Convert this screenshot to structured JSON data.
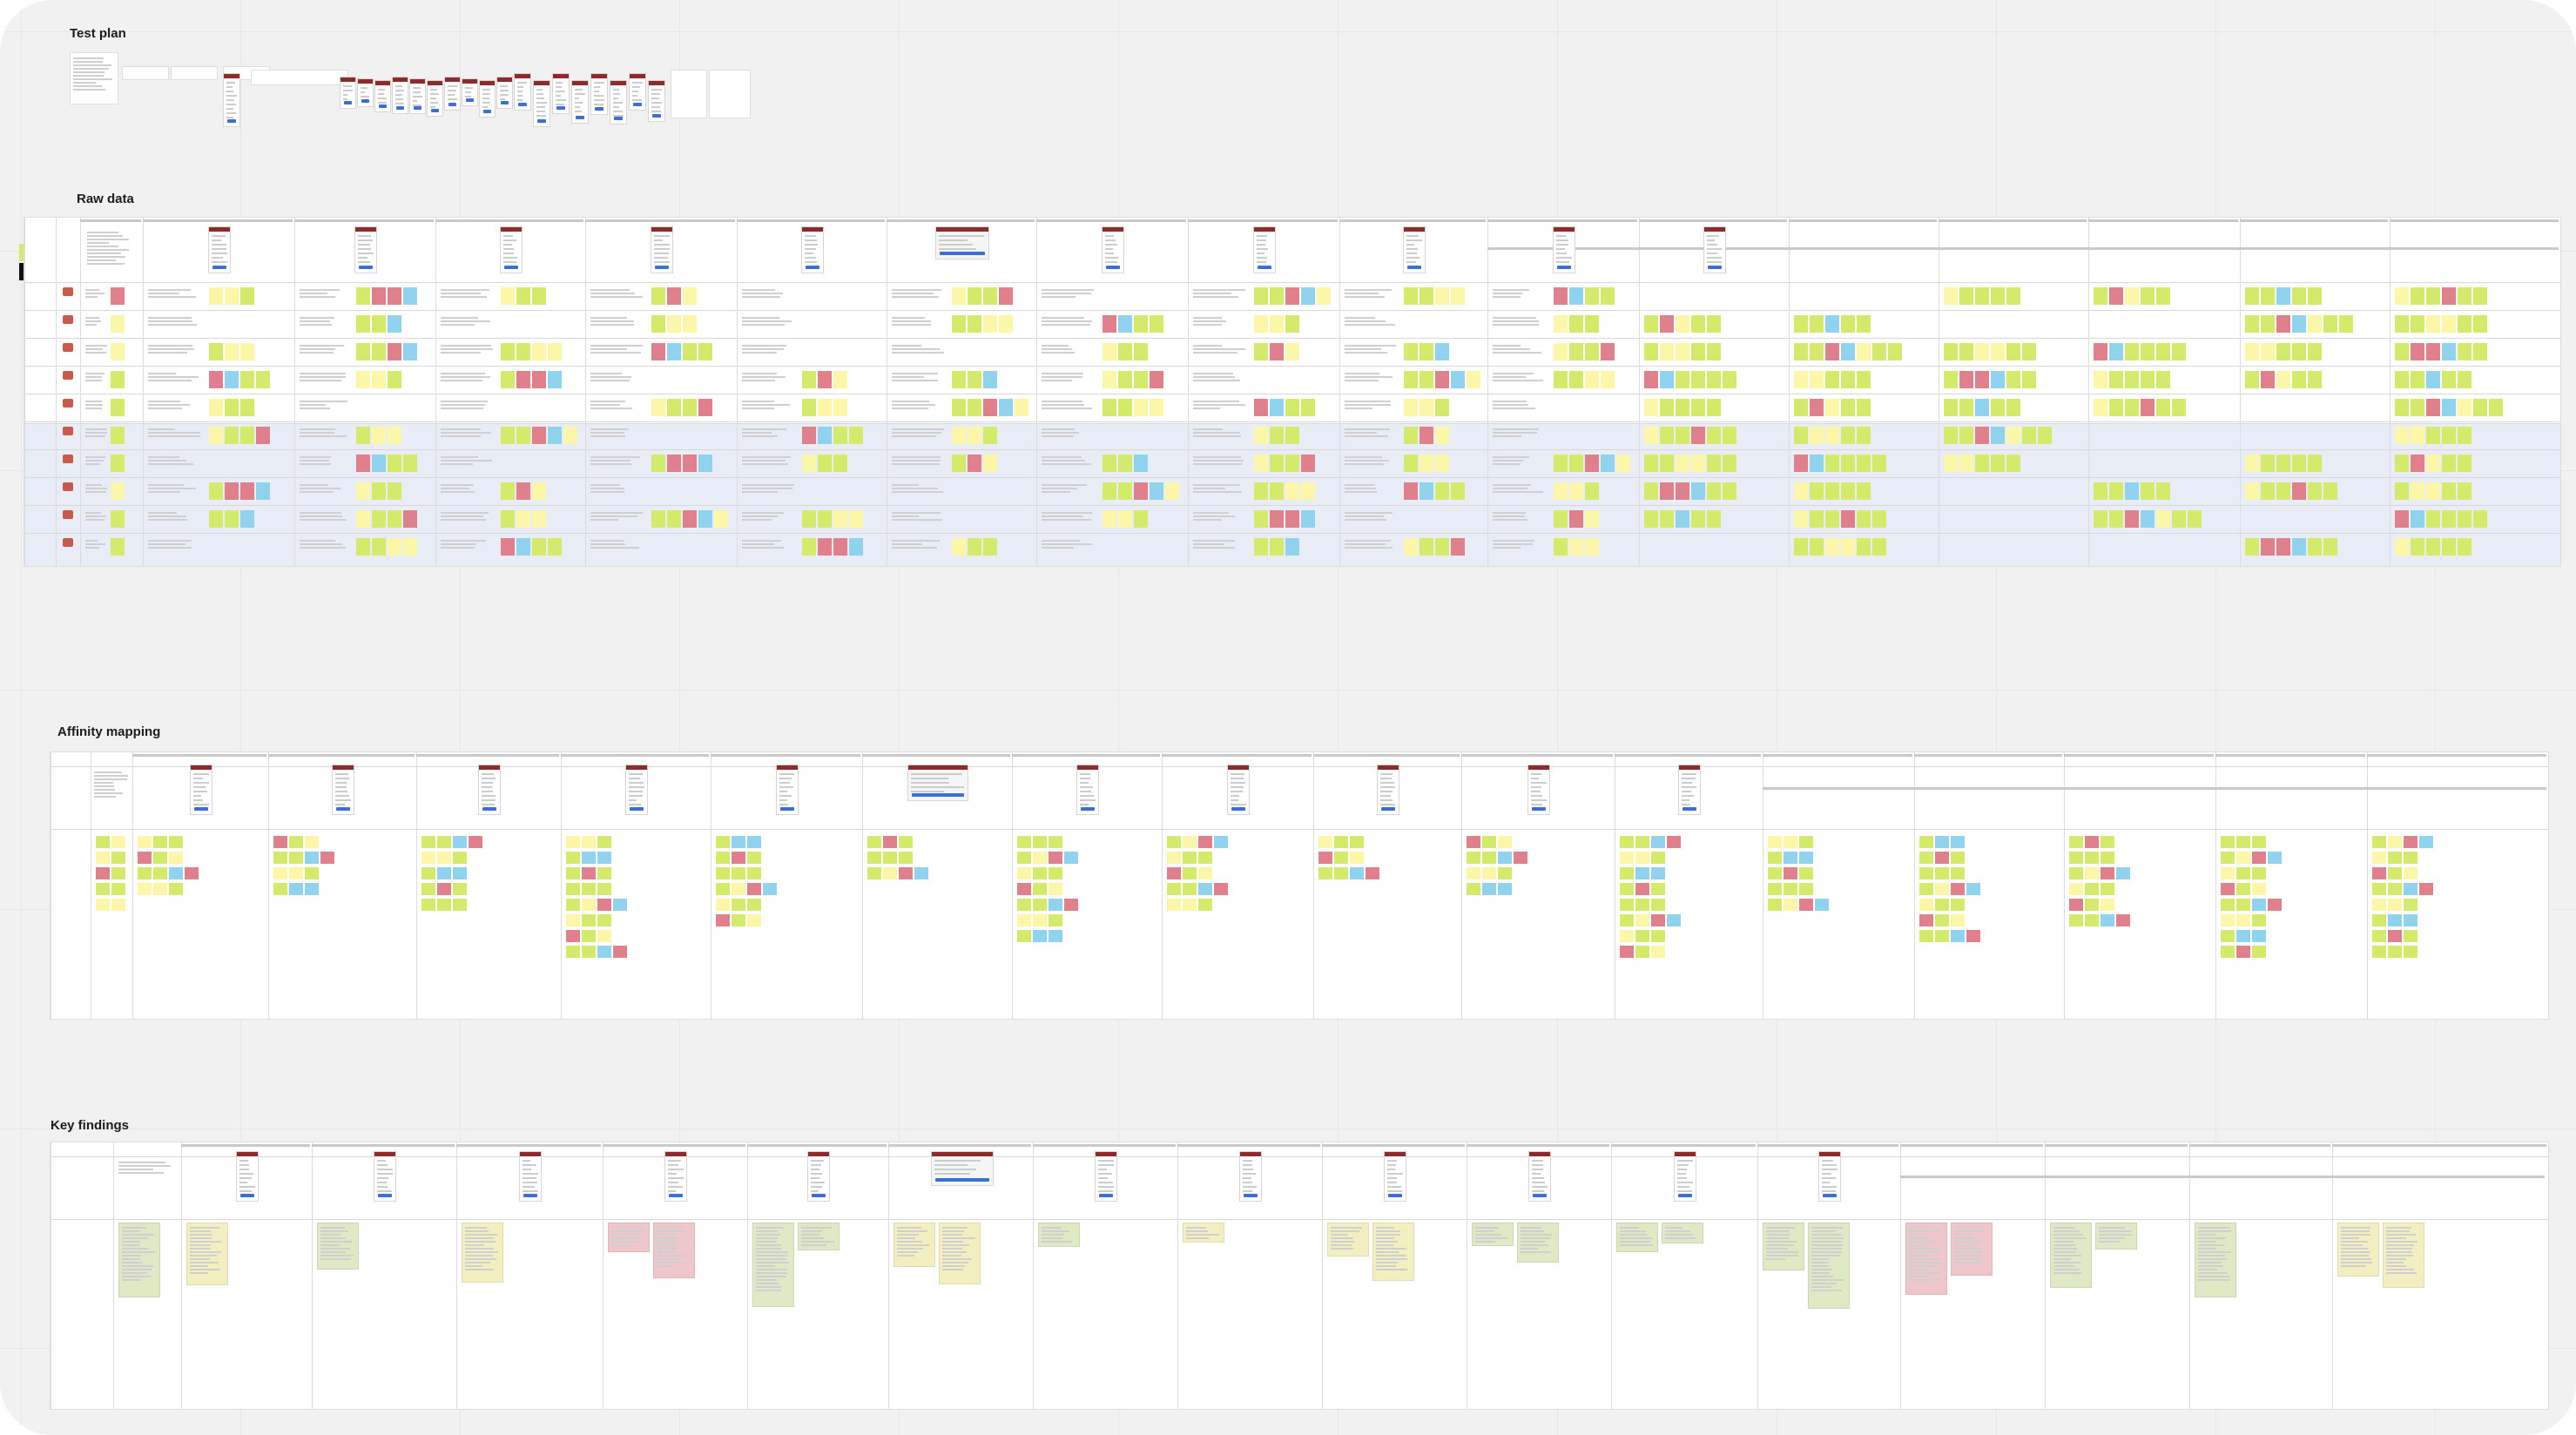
{
  "board": {
    "sections": [
      {
        "id": "test-plan",
        "label": "Test plan"
      },
      {
        "id": "raw-data",
        "label": "Raw data"
      },
      {
        "id": "affinity-mapping",
        "label": "Affinity mapping"
      },
      {
        "id": "key-findings",
        "label": "Key findings"
      }
    ]
  },
  "palette": {
    "sticky_green": "#d4ea6b",
    "sticky_yellow": "#fbf6a8",
    "sticky_red": "#e0808c",
    "sticky_blue": "#8fd3ef",
    "sticky_black": "#111111",
    "row_band": "#e9edf8",
    "phone_header": "#8e2a2a",
    "phone_cta": "#3a6fd8",
    "card_green": "#dfe9c4",
    "card_yellow": "#f3efc0",
    "card_red": "#efc7cb"
  }
}
